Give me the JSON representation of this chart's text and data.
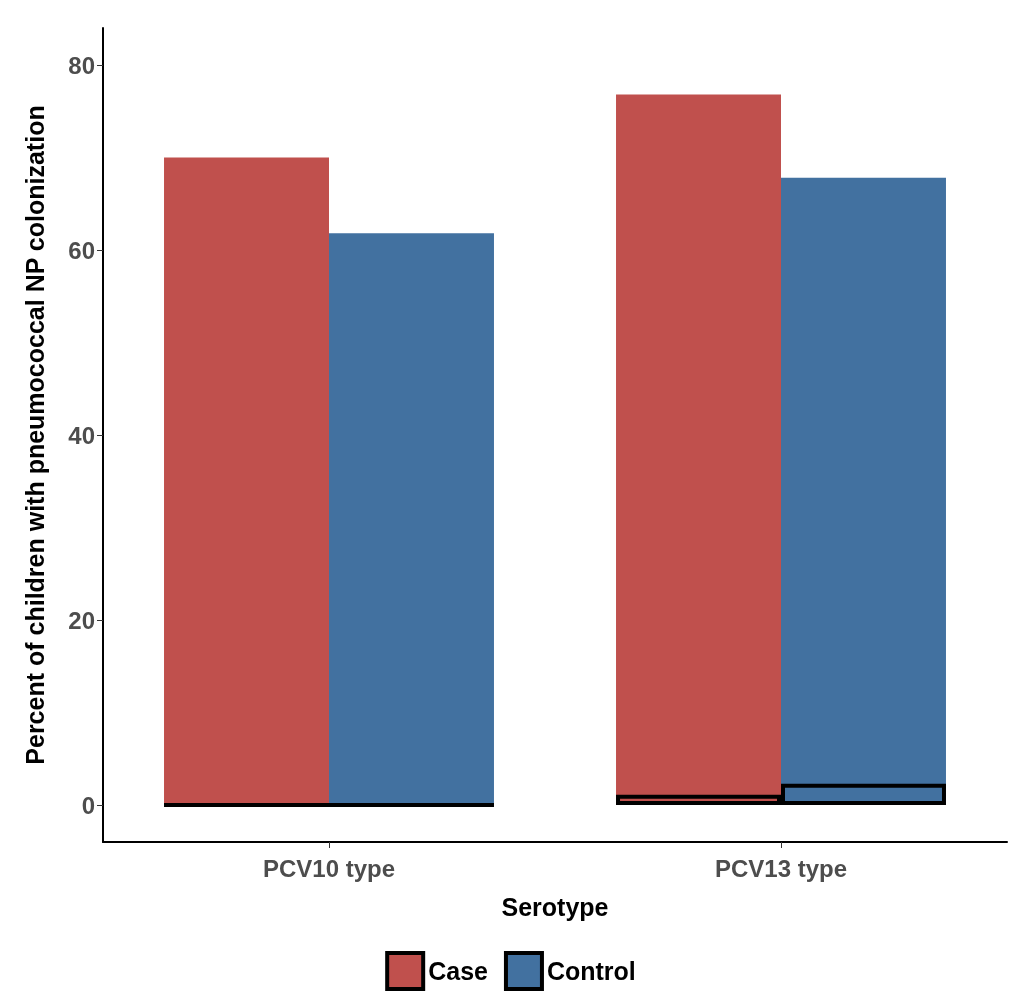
{
  "chart_data": {
    "type": "bar",
    "xlabel": "Serotype",
    "ylabel": "Percent of children with pneumococcal NP colonization",
    "categories": [
      "PCV10 type",
      "PCV13 type"
    ],
    "series": [
      {
        "name": "Case",
        "color": "#c0504d",
        "values": [
          70,
          76.8
        ]
      },
      {
        "name": "Control",
        "color": "#4271a0",
        "values": [
          61.8,
          67.8
        ]
      },
      {
        "colors": [
          "#000000",
          "#c0504d"
        ],
        "values": [
          0,
          1.1
        ]
      },
      {
        "colors": [
          "#000000",
          "#4271a0"
        ],
        "values": [
          0,
          2.3
        ]
      }
    ],
    "ylim": [
      -4,
      84
    ],
    "yticks": [
      0,
      20,
      40,
      60,
      80
    ],
    "grid": false,
    "legend": "bottom"
  }
}
